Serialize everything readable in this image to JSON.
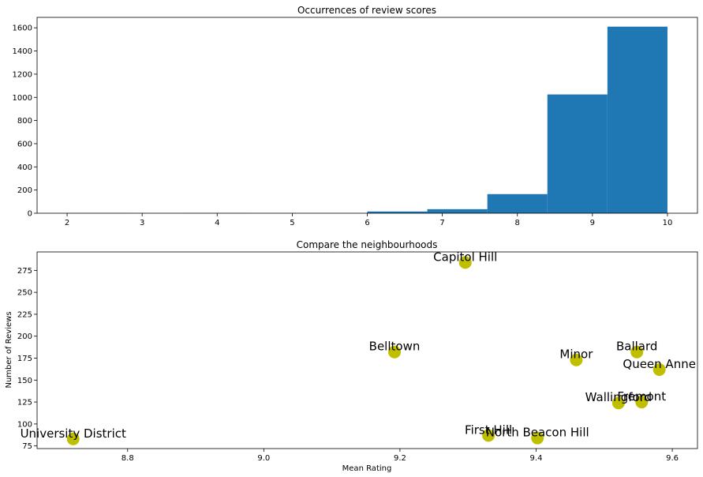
{
  "chart_data": [
    {
      "type": "bar",
      "title": "Occurrences of review scores",
      "xlabel": "",
      "ylabel": "",
      "xlim": [
        1.6,
        10.4
      ],
      "ylim": [
        0,
        1690
      ],
      "xticks": [
        2,
        3,
        4,
        5,
        6,
        7,
        8,
        9,
        10
      ],
      "yticks": [
        0,
        200,
        400,
        600,
        800,
        1000,
        1200,
        1400,
        1600
      ],
      "bins": [
        {
          "start": 2.0,
          "end": 2.8,
          "value": 1
        },
        {
          "start": 2.8,
          "end": 3.6,
          "value": 0
        },
        {
          "start": 3.6,
          "end": 4.4,
          "value": 1
        },
        {
          "start": 4.4,
          "end": 5.2,
          "value": 0
        },
        {
          "start": 5.2,
          "end": 6.0,
          "value": 0
        },
        {
          "start": 6.0,
          "end": 6.8,
          "value": 15
        },
        {
          "start": 6.8,
          "end": 7.6,
          "value": 35
        },
        {
          "start": 7.6,
          "end": 8.4,
          "value": 165
        },
        {
          "start": 8.4,
          "end": 9.2,
          "value": 1025
        },
        {
          "start": 9.2,
          "end": 10.0,
          "value": 1610
        }
      ],
      "color": "#1f77b4"
    },
    {
      "type": "scatter",
      "title": "Compare the neighbourhoods",
      "xlabel": "Mean Rating",
      "ylabel": "Number of Reviews",
      "xlim": [
        8.667,
        9.637
      ],
      "ylim": [
        72,
        296
      ],
      "xticks": [
        8.8,
        9.0,
        9.2,
        9.4,
        9.6
      ],
      "xtick_labels": [
        "8.8",
        "9.0",
        "9.2",
        "9.4",
        "9.6"
      ],
      "yticks": [
        75,
        100,
        125,
        150,
        175,
        200,
        225,
        250,
        275
      ],
      "color": "#bfbf00",
      "points": [
        {
          "label": "Capitol Hill",
          "x": 9.296,
          "y": 284
        },
        {
          "label": "Belltown",
          "x": 9.192,
          "y": 182
        },
        {
          "label": "Minor",
          "x": 9.459,
          "y": 173
        },
        {
          "label": "Ballard",
          "x": 9.548,
          "y": 182
        },
        {
          "label": "Queen Anne",
          "x": 9.581,
          "y": 162
        },
        {
          "label": "Wallingford",
          "x": 9.521,
          "y": 124
        },
        {
          "label": "Fremont",
          "x": 9.555,
          "y": 125
        },
        {
          "label": "University District",
          "x": 8.72,
          "y": 83
        },
        {
          "label": "First Hill",
          "x": 9.33,
          "y": 87
        },
        {
          "label": "North Beacon Hill",
          "x": 9.402,
          "y": 84
        }
      ]
    }
  ]
}
